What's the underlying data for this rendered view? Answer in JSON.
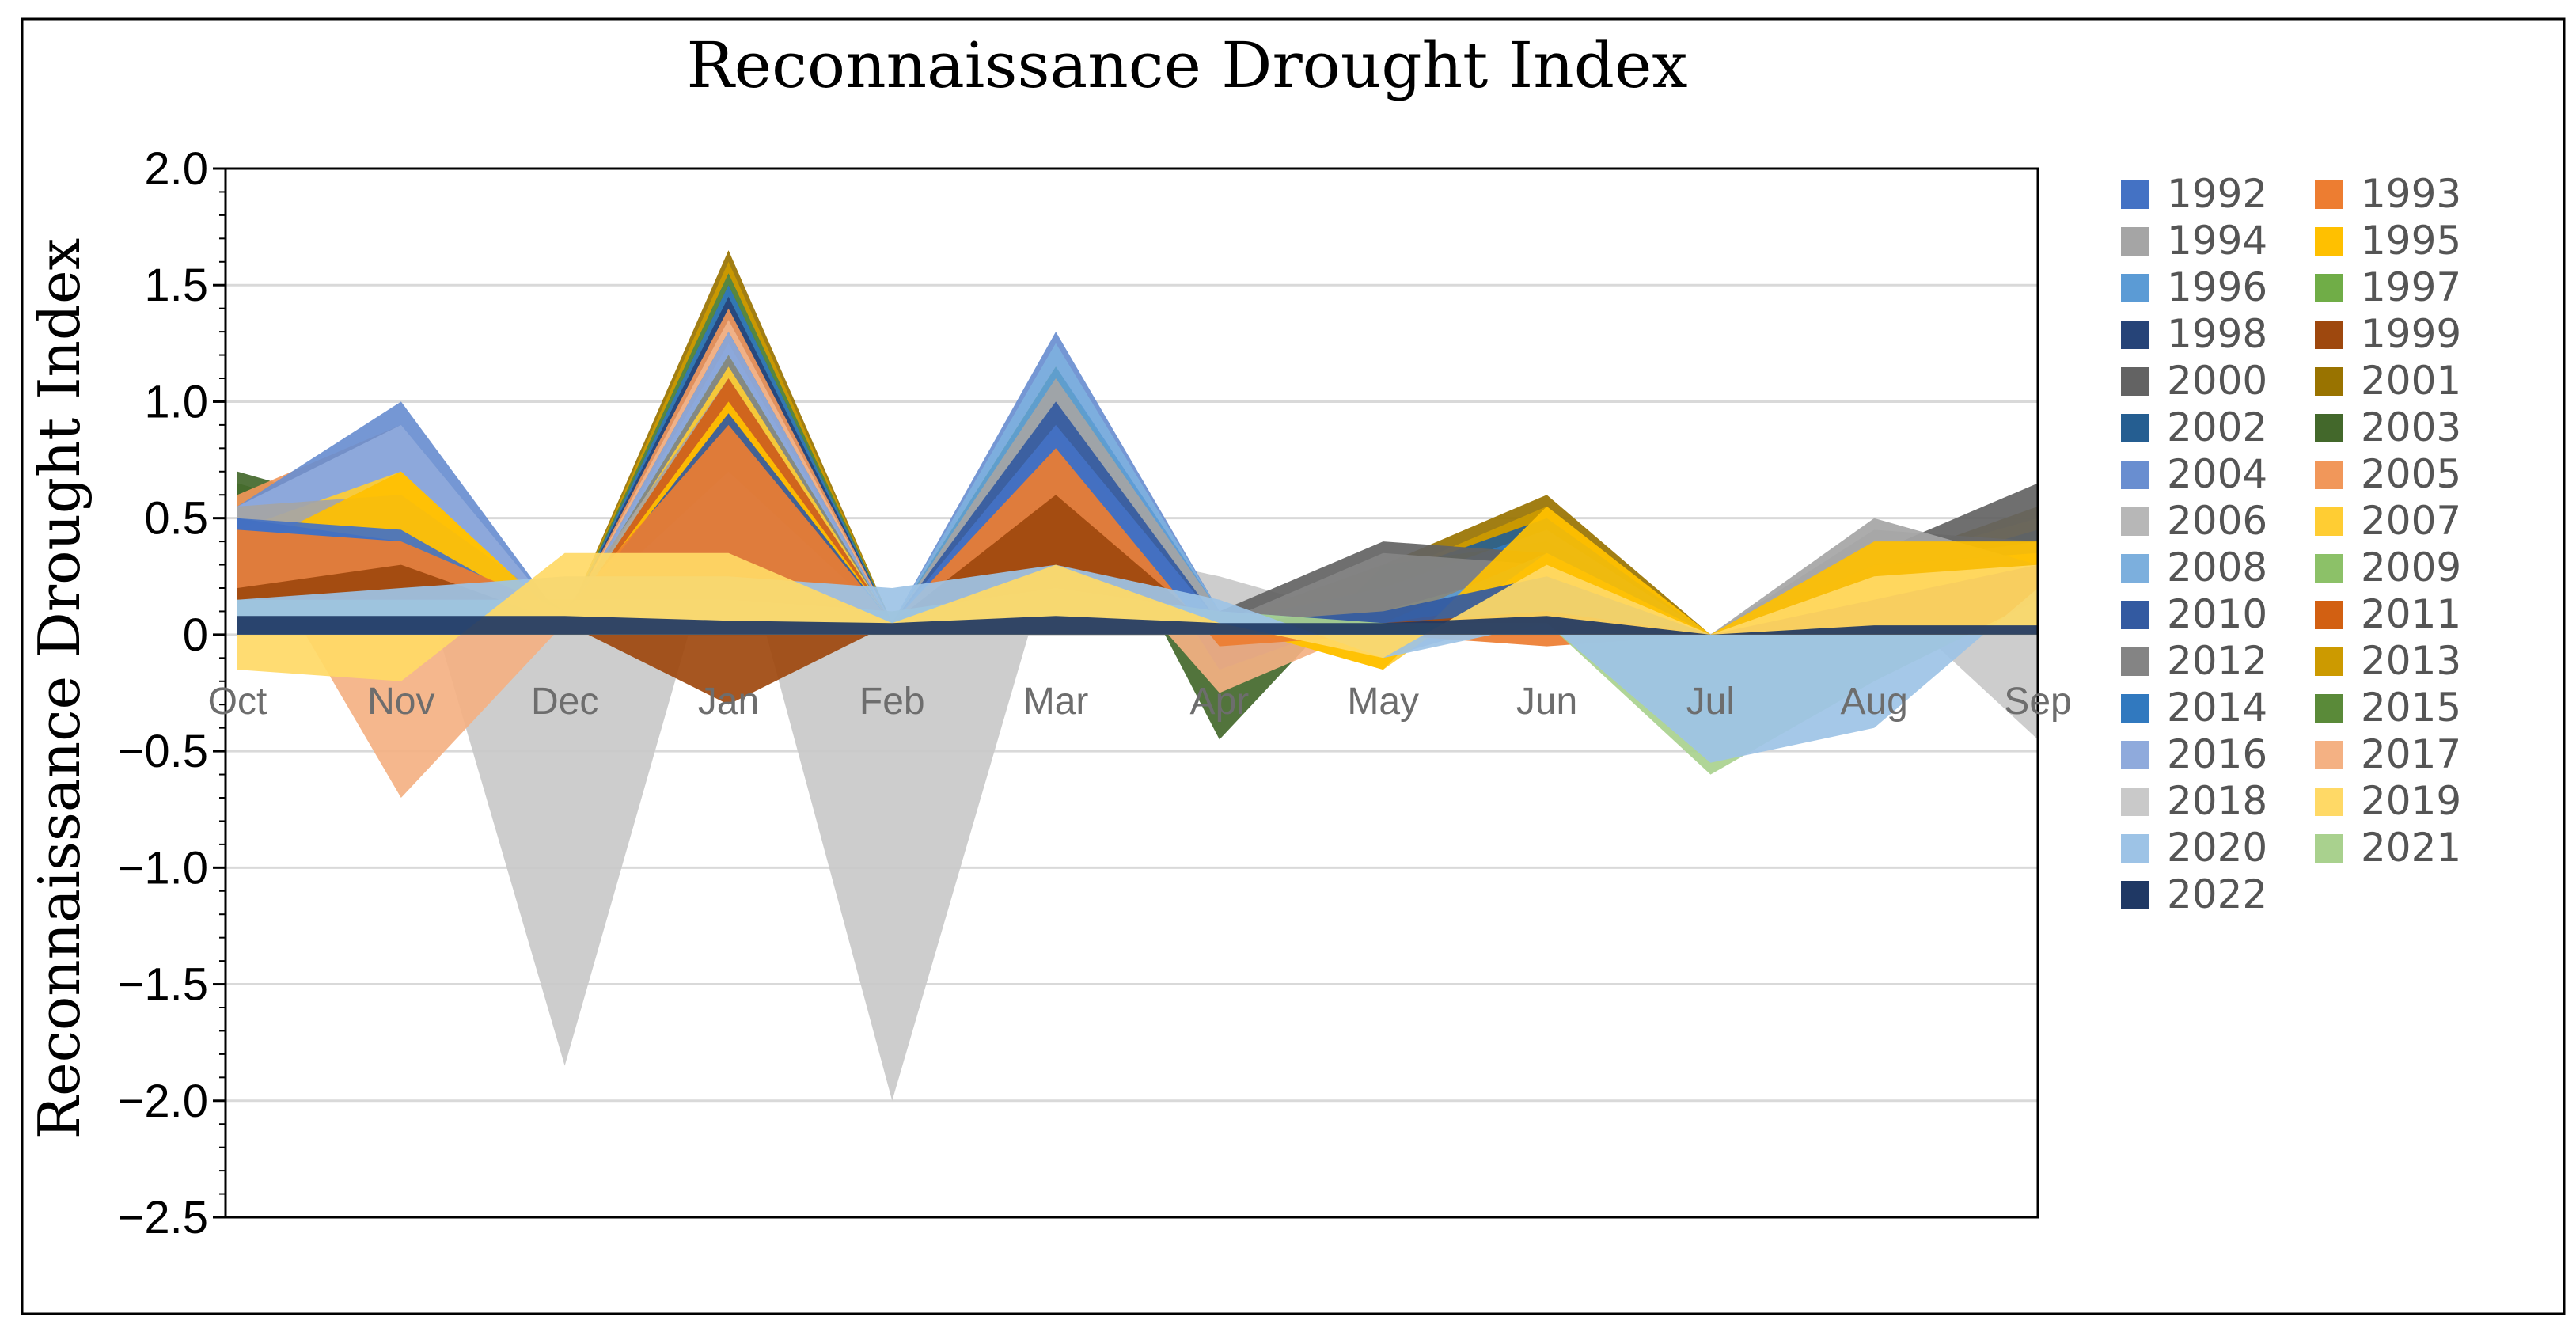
{
  "chart_data": {
    "type": "area",
    "title": "Reconnaissance Drought Index",
    "xlabel": "",
    "ylabel": "Reconnaissance Drought Index",
    "categories": [
      "Oct",
      "Nov",
      "Dec",
      "Jan",
      "Feb",
      "Mar",
      "Apr",
      "May",
      "Jun",
      "Jul",
      "Aug",
      "Sep"
    ],
    "ylim": [
      -2.5,
      2.0
    ],
    "yticks": [
      {
        "value": 2.0,
        "label": "2.0"
      },
      {
        "value": 1.5,
        "label": "1.5"
      },
      {
        "value": 1.0,
        "label": "1.0"
      },
      {
        "value": 0.5,
        "label": "0.5"
      },
      {
        "value": 0,
        "label": "0"
      },
      {
        "value": -0.5,
        "label": "−0.5"
      },
      {
        "value": -1.0,
        "label": "−1.0"
      },
      {
        "value": -1.5,
        "label": "−1.5"
      },
      {
        "value": -2.0,
        "label": "−2.0"
      },
      {
        "value": -2.5,
        "label": "−2.5"
      }
    ],
    "gridlines": true,
    "legend_position": "right",
    "series": [
      {
        "name": "1992",
        "color": "#4472C4",
        "values": [
          0.5,
          0.45,
          0.05,
          0.7,
          0.05,
          0.9,
          0.05,
          0.0,
          0.1,
          0.0,
          0.05,
          0.1
        ]
      },
      {
        "name": "1993",
        "color": "#ED7D31",
        "values": [
          0.45,
          0.4,
          0.1,
          0.9,
          0.05,
          0.8,
          -0.05,
          0.0,
          -0.05,
          0.0,
          0.1,
          0.2
        ]
      },
      {
        "name": "1994",
        "color": "#A5A5A5",
        "values": [
          0.55,
          0.6,
          0.1,
          1.1,
          0.05,
          1.1,
          0.1,
          0.0,
          0.05,
          0.0,
          0.5,
          0.3
        ]
      },
      {
        "name": "1995",
        "color": "#FFC000",
        "values": [
          0.35,
          0.7,
          0.05,
          1.0,
          0.05,
          0.7,
          0.05,
          -0.15,
          0.55,
          0.0,
          0.4,
          0.4
        ]
      },
      {
        "name": "1996",
        "color": "#5B9BD5",
        "values": [
          0.3,
          0.55,
          0.05,
          0.95,
          0.05,
          1.15,
          0.1,
          0.05,
          0.35,
          0.0,
          0.2,
          0.3
        ]
      },
      {
        "name": "1997",
        "color": "#70AD47",
        "values": [
          0.25,
          0.5,
          0.05,
          1.2,
          0.05,
          1.05,
          0.05,
          0.1,
          0.3,
          0.0,
          0.1,
          0.15
        ]
      },
      {
        "name": "1998",
        "color": "#264478",
        "values": [
          0.4,
          0.35,
          0.05,
          1.45,
          0.05,
          0.95,
          -0.15,
          0.1,
          0.2,
          0.0,
          0.15,
          0.35
        ]
      },
      {
        "name": "1999",
        "color": "#9E480E",
        "values": [
          0.2,
          0.3,
          0.05,
          -0.3,
          0.05,
          0.6,
          0.0,
          0.05,
          0.1,
          0.0,
          0.15,
          0.3
        ]
      },
      {
        "name": "2000",
        "color": "#636363",
        "values": [
          0.5,
          0.45,
          0.05,
          1.3,
          0.05,
          0.75,
          0.1,
          0.4,
          0.35,
          0.0,
          0.35,
          0.65
        ]
      },
      {
        "name": "2001",
        "color": "#997300",
        "values": [
          0.35,
          0.4,
          0.05,
          1.65,
          0.05,
          0.75,
          0.05,
          0.3,
          0.6,
          0.0,
          0.3,
          0.55
        ]
      },
      {
        "name": "2002",
        "color": "#255E91",
        "values": [
          0.45,
          0.4,
          0.05,
          1.55,
          0.05,
          1.0,
          0.05,
          0.25,
          0.5,
          0.0,
          0.25,
          0.45
        ]
      },
      {
        "name": "2003",
        "color": "#43682B",
        "values": [
          0.7,
          0.5,
          0.05,
          1.5,
          0.05,
          0.9,
          -0.45,
          0.3,
          0.4,
          0.0,
          0.2,
          0.35
        ]
      },
      {
        "name": "2004",
        "color": "#698ED0",
        "values": [
          0.55,
          1.0,
          0.05,
          1.25,
          0.05,
          1.3,
          0.1,
          0.05,
          0.2,
          0.0,
          0.1,
          0.2
        ]
      },
      {
        "name": "2005",
        "color": "#F1975A",
        "values": [
          0.6,
          0.9,
          0.05,
          1.4,
          0.05,
          0.95,
          0.05,
          0.05,
          0.1,
          0.0,
          0.2,
          0.25
        ]
      },
      {
        "name": "2006",
        "color": "#B7B7B7",
        "values": [
          0.55,
          0.8,
          0.05,
          1.35,
          0.05,
          0.45,
          0.05,
          0.05,
          0.05,
          0.0,
          0.45,
          0.4
        ]
      },
      {
        "name": "2007",
        "color": "#FFCD33",
        "values": [
          0.45,
          0.7,
          0.05,
          1.15,
          0.05,
          0.6,
          0.05,
          -0.15,
          0.35,
          0.0,
          0.3,
          0.35
        ]
      },
      {
        "name": "2008",
        "color": "#7CAFDD",
        "values": [
          0.3,
          0.6,
          0.05,
          1.05,
          0.05,
          1.25,
          0.1,
          0.05,
          0.25,
          0.0,
          0.15,
          0.2
        ]
      },
      {
        "name": "2009",
        "color": "#8CC168",
        "values": [
          0.25,
          0.5,
          0.05,
          1.2,
          0.05,
          1.15,
          0.05,
          0.1,
          0.3,
          0.0,
          0.1,
          0.2
        ]
      },
      {
        "name": "2010",
        "color": "#335AA1",
        "values": [
          0.5,
          0.4,
          0.05,
          0.95,
          0.05,
          1.0,
          0.05,
          0.1,
          0.25,
          0.0,
          0.1,
          0.15
        ]
      },
      {
        "name": "2011",
        "color": "#D26012",
        "values": [
          0.4,
          0.3,
          0.05,
          1.1,
          0.05,
          0.85,
          0.05,
          0.05,
          0.15,
          0.0,
          0.1,
          0.15
        ]
      },
      {
        "name": "2012",
        "color": "#848484",
        "values": [
          0.3,
          0.2,
          0.05,
          1.2,
          0.05,
          0.7,
          0.05,
          0.35,
          0.3,
          0.0,
          0.3,
          0.4
        ]
      },
      {
        "name": "2013",
        "color": "#CC9A00",
        "values": [
          0.35,
          0.3,
          0.05,
          1.6,
          0.05,
          0.65,
          0.05,
          0.25,
          0.55,
          0.0,
          0.3,
          0.5
        ]
      },
      {
        "name": "2014",
        "color": "#3179BF",
        "values": [
          0.4,
          0.35,
          0.05,
          1.5,
          0.05,
          1.0,
          0.05,
          0.2,
          0.45,
          0.0,
          0.2,
          0.4
        ]
      },
      {
        "name": "2015",
        "color": "#5A8A39",
        "values": [
          0.65,
          0.45,
          0.05,
          1.55,
          0.05,
          1.05,
          0.05,
          0.25,
          0.35,
          0.0,
          0.25,
          0.3
        ]
      },
      {
        "name": "2016",
        "color": "#8FAADC",
        "values": [
          0.55,
          0.9,
          0.05,
          1.3,
          0.05,
          1.25,
          0.1,
          -0.1,
          0.1,
          0.0,
          0.1,
          0.15
        ]
      },
      {
        "name": "2017",
        "color": "#F4B183",
        "values": [
          0.5,
          -0.7,
          0.05,
          1.35,
          0.05,
          0.55,
          -0.25,
          0.05,
          0.05,
          0.0,
          0.2,
          0.25
        ]
      },
      {
        "name": "2018",
        "color": "#C9C9C9",
        "values": [
          0.45,
          0.55,
          -1.85,
          0.6,
          -2.0,
          0.4,
          0.25,
          0.05,
          0.05,
          0.0,
          0.2,
          -0.45
        ]
      },
      {
        "name": "2019",
        "color": "#FFD966",
        "values": [
          -0.15,
          -0.2,
          0.35,
          0.35,
          0.05,
          0.3,
          0.05,
          -0.1,
          0.3,
          0.0,
          0.25,
          0.3
        ]
      },
      {
        "name": "2020",
        "color": "#9DC3E6",
        "values": [
          0.15,
          0.2,
          0.25,
          0.25,
          0.2,
          0.3,
          0.15,
          -0.1,
          0.05,
          -0.55,
          -0.4,
          0.2
        ]
      },
      {
        "name": "2021",
        "color": "#A9D18E",
        "values": [
          0.15,
          0.15,
          0.15,
          0.15,
          0.1,
          0.2,
          0.1,
          0.05,
          0.05,
          -0.6,
          -0.2,
          0.15
        ]
      },
      {
        "name": "2022",
        "color": "#1F3864",
        "values": [
          0.08,
          0.08,
          0.08,
          0.06,
          0.05,
          0.08,
          0.05,
          0.05,
          0.08,
          0.0,
          0.04,
          0.04
        ]
      }
    ]
  }
}
